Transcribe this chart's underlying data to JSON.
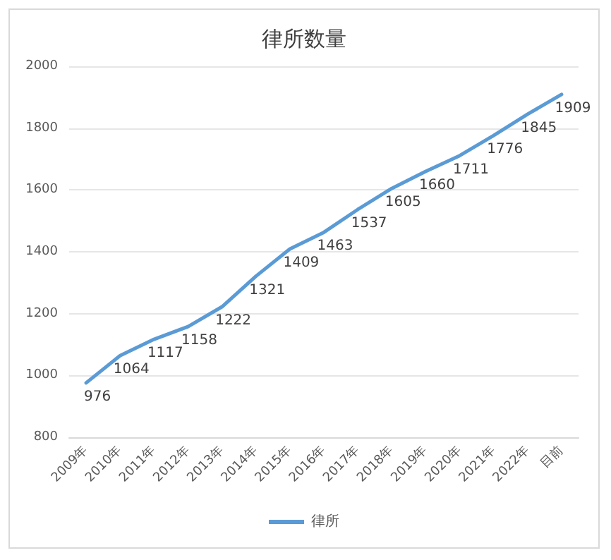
{
  "chart_data": {
    "type": "line",
    "title": "律所数量",
    "categories": [
      "2009年",
      "2010年",
      "2011年",
      "2012年",
      "2013年",
      "2014年",
      "2015年",
      "2016年",
      "2017年",
      "2018年",
      "2019年",
      "2020年",
      "2021年",
      "2022年",
      "目前"
    ],
    "series": [
      {
        "name": "律所",
        "color": "#5b9bd5",
        "values": [
          976,
          1064,
          1117,
          1158,
          1222,
          1321,
          1409,
          1463,
          1537,
          1605,
          1660,
          1711,
          1776,
          1845,
          1909
        ]
      }
    ],
    "ylim": [
      800,
      2000
    ],
    "yticks": [
      800,
      1000,
      1200,
      1400,
      1600,
      1800,
      2000
    ],
    "grid": "y",
    "legend": "bottom",
    "data_labels": true,
    "marker": "none",
    "line_style": "solid"
  }
}
